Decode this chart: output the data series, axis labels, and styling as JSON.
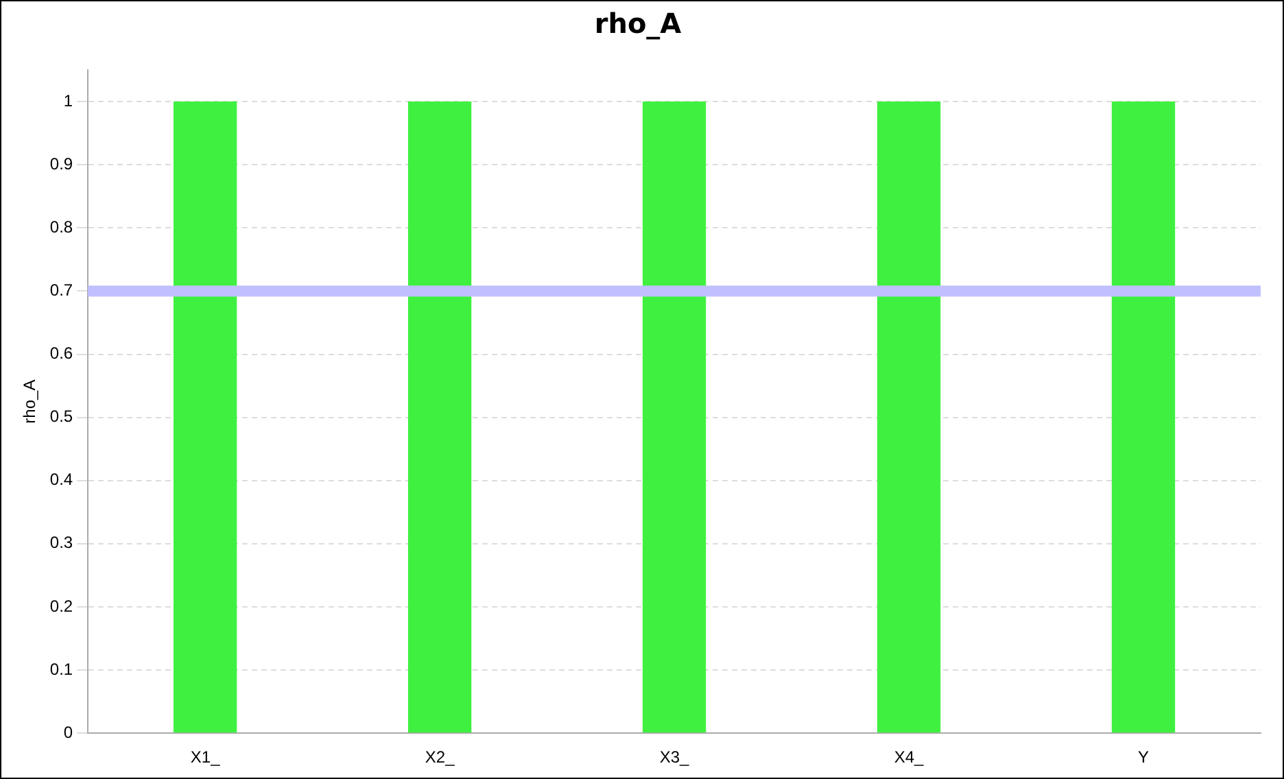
{
  "chart_data": {
    "type": "bar",
    "title": "rho_A",
    "ylabel": "rho_A",
    "categories": [
      "X1_",
      "X2_",
      "X3_",
      "X4_",
      "Y"
    ],
    "values": [
      1,
      1,
      1,
      1,
      1
    ],
    "color": "#40f040",
    "ylim": [
      0,
      1.05
    ],
    "yticks": [
      0,
      0.1,
      0.2,
      0.3,
      0.4,
      0.5,
      0.6,
      0.7,
      0.8,
      0.9,
      1
    ],
    "ref_lines": [
      {
        "axis": "y",
        "value": 0.7,
        "color": "#c0c0ff"
      }
    ],
    "grid": "y",
    "legend": false
  }
}
